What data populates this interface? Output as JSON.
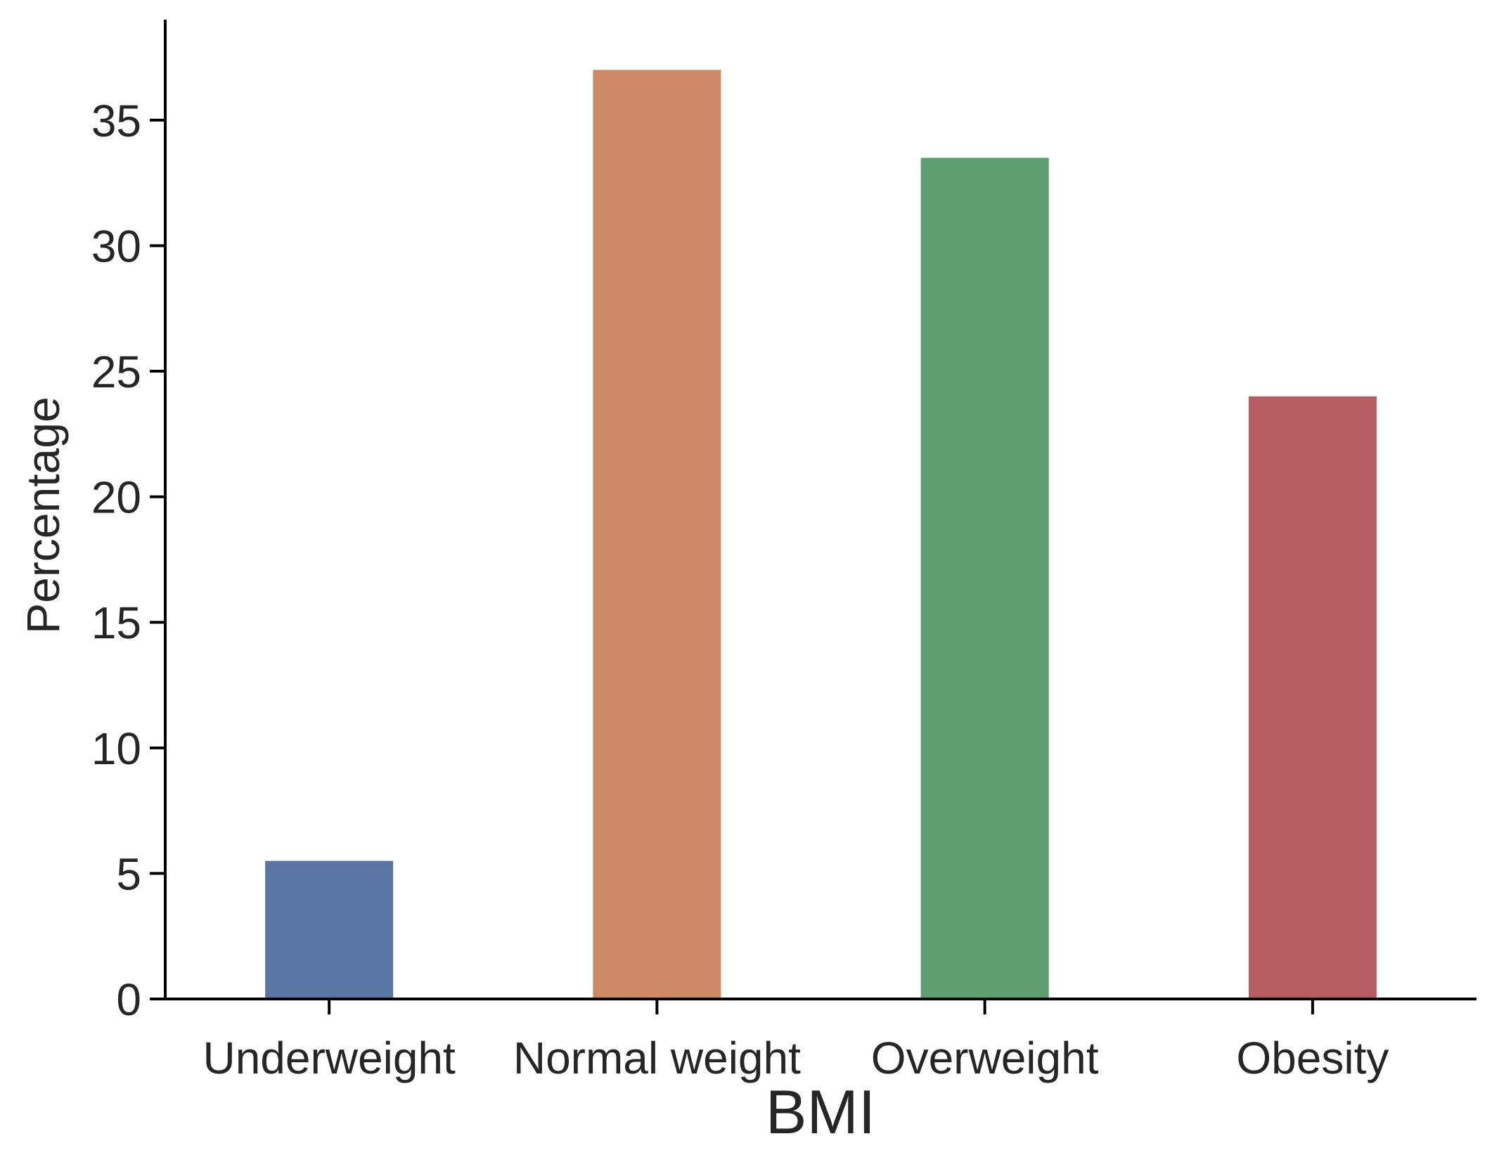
{
  "chart_data": {
    "type": "bar",
    "title": "",
    "xlabel": "BMI",
    "ylabel": "Percentage",
    "categories": [
      "Underweight",
      "Normal weight",
      "Overweight",
      "Obesity"
    ],
    "values": [
      5.5,
      37.0,
      33.5,
      24.0
    ],
    "colors": [
      "#5875a4",
      "#cc8963",
      "#5f9e6e",
      "#b55d60"
    ],
    "ylim": [
      0,
      39
    ],
    "yticks": [
      0,
      5,
      10,
      15,
      20,
      25,
      30,
      35
    ],
    "grid": false,
    "legend": "none"
  }
}
